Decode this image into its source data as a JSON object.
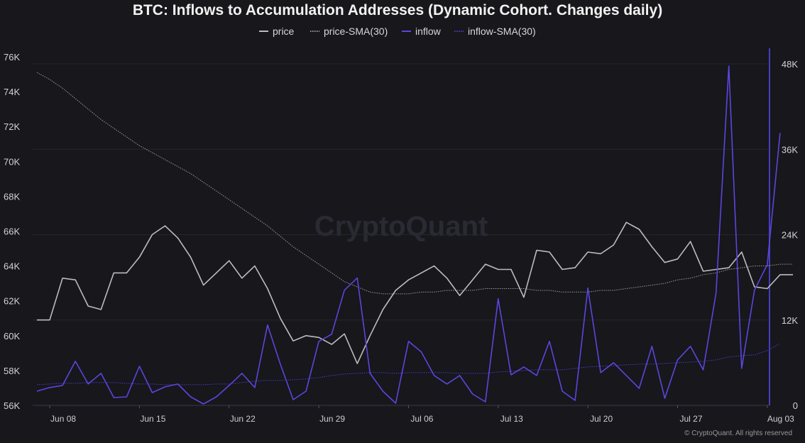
{
  "chart_data": {
    "type": "line",
    "title": "BTC: Inflows to Accumulation Addresses (Dynamic Cohort. Changes daily)",
    "watermark": "CryptoQuant",
    "copyright": "© CryptoQuant. All rights reserved",
    "legend": [
      {
        "key": "price",
        "label": "price",
        "color": "#bdbdbd",
        "style": "solid"
      },
      {
        "key": "price_sma",
        "label": "price-SMA(30)",
        "color": "#9c9c9c",
        "style": "dotted"
      },
      {
        "key": "inflow",
        "label": "inflow",
        "color": "#5b46dc",
        "style": "solid"
      },
      {
        "key": "inflow_sma",
        "label": "inflow-SMA(30)",
        "color": "#4a3cc0",
        "style": "dotted"
      }
    ],
    "x_ticks": [
      {
        "label": "Jun 08",
        "day": 1
      },
      {
        "label": "Jun 15",
        "day": 8
      },
      {
        "label": "Jun 22",
        "day": 15
      },
      {
        "label": "Jun 29",
        "day": 22
      },
      {
        "label": "Jul 06",
        "day": 29
      },
      {
        "label": "Jul 13",
        "day": 36
      },
      {
        "label": "Jul 20",
        "day": 43
      },
      {
        "label": "Jul 27",
        "day": 50
      },
      {
        "label": "Aug 03",
        "day": 57
      }
    ],
    "x_range": [
      "Jun 07",
      "Aug 04"
    ],
    "y_left": {
      "min": 56000,
      "max": 76000,
      "ticks": [
        56000,
        58000,
        60000,
        62000,
        64000,
        66000,
        68000,
        70000,
        72000,
        74000,
        76000
      ],
      "tick_labels": [
        "56K",
        "58K",
        "60K",
        "62K",
        "64K",
        "66K",
        "68K",
        "70K",
        "72K",
        "74K",
        "76K"
      ]
    },
    "y_right": {
      "min": 0,
      "max": 48000,
      "ticks": [
        0,
        12000,
        24000,
        36000,
        48000
      ],
      "tick_labels": [
        "0",
        "12K",
        "24K",
        "36K",
        "48K"
      ]
    },
    "series": [
      {
        "key": "price",
        "axis": "left",
        "start_date": "Jun 07",
        "values": [
          60900,
          60900,
          63300,
          63200,
          61700,
          61500,
          63600,
          63600,
          64500,
          65800,
          66300,
          65600,
          64500,
          62900,
          63600,
          64300,
          63300,
          64000,
          62700,
          61000,
          59700,
          60000,
          59900,
          59500,
          60100,
          58400,
          60000,
          61500,
          62600,
          63200,
          63600,
          64000,
          63300,
          62300,
          63200,
          64100,
          63800,
          63800,
          62200,
          64900,
          64800,
          63800,
          63900,
          64800,
          64700,
          65200,
          66500,
          66100,
          65100,
          64200,
          64400,
          65400,
          63700,
          63800,
          63900,
          64800,
          62800,
          62700,
          63500,
          63500
        ]
      },
      {
        "key": "price_sma",
        "axis": "left",
        "start_date": "Jun 07",
        "values": [
          75100,
          74700,
          74200,
          73600,
          73000,
          72400,
          71900,
          71400,
          70900,
          70500,
          70100,
          69700,
          69300,
          68800,
          68300,
          67800,
          67300,
          66800,
          66300,
          65700,
          65100,
          64600,
          64100,
          63600,
          63100,
          62800,
          62500,
          62400,
          62400,
          62400,
          62500,
          62500,
          62600,
          62600,
          62600,
          62700,
          62700,
          62700,
          62700,
          62600,
          62600,
          62500,
          62500,
          62500,
          62600,
          62600,
          62700,
          62800,
          62900,
          63000,
          63200,
          63300,
          63500,
          63600,
          63800,
          63900,
          64000,
          64000,
          64100,
          64100
        ]
      },
      {
        "key": "inflow",
        "axis": "right",
        "start_date": "Jun 07",
        "values": [
          2000,
          2500,
          2800,
          6200,
          3000,
          4500,
          1100,
          1200,
          5500,
          1800,
          2600,
          3000,
          1200,
          200,
          1200,
          2800,
          4500,
          2500,
          11300,
          5800,
          800,
          2000,
          9000,
          10000,
          16200,
          17900,
          4500,
          2000,
          300,
          9000,
          7500,
          4200,
          3000,
          4200,
          1600,
          500,
          15000,
          4300,
          5400,
          4200,
          9000,
          2000,
          700,
          16500,
          4600,
          6000,
          4200,
          2400,
          8300,
          1000,
          6400,
          8300,
          5000,
          15800,
          47700,
          5200,
          16200,
          19800,
          38300
        ]
      },
      {
        "key": "inflow_sma",
        "axis": "right",
        "start_date": "Jun 07",
        "values": [
          2900,
          3000,
          3100,
          3100,
          3200,
          3200,
          3200,
          3100,
          3000,
          3000,
          2900,
          2900,
          2900,
          2900,
          3000,
          3000,
          3200,
          3400,
          3500,
          3500,
          3600,
          3700,
          3900,
          4200,
          4400,
          4500,
          4600,
          4600,
          4500,
          4600,
          4600,
          4600,
          4600,
          4500,
          4500,
          4500,
          4700,
          4800,
          4900,
          5000,
          5000,
          5000,
          5200,
          5400,
          5500,
          5600,
          5700,
          5800,
          5800,
          5900,
          6000,
          6100,
          6200,
          6400,
          6800,
          7000,
          7100,
          7700,
          8700
        ]
      }
    ]
  }
}
